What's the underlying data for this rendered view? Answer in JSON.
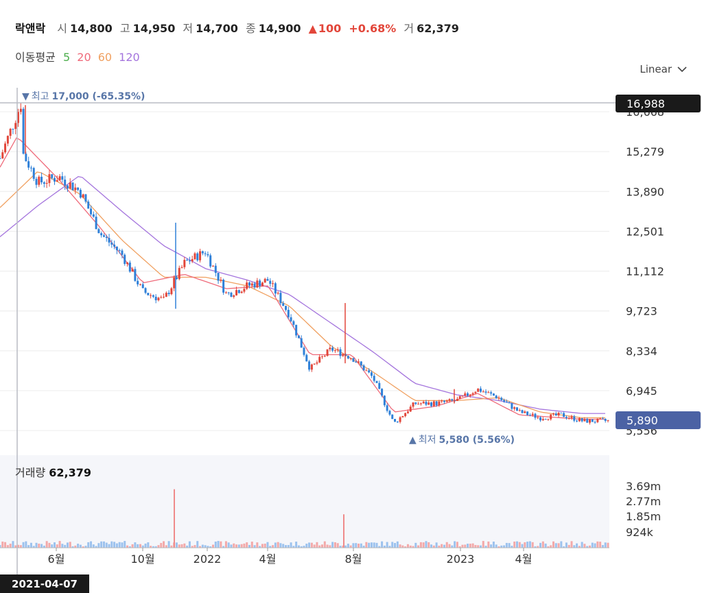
{
  "header": {
    "name": "락앤락",
    "open_label": "시",
    "open": "14,800",
    "high_label": "고",
    "high": "14,950",
    "low_label": "저",
    "low": "14,700",
    "close_label": "종",
    "close": "14,900",
    "change_arrow": "▲",
    "change": "100",
    "change_pct": "+0.68%",
    "volume_label": "거",
    "volume": "62,379"
  },
  "ma_legend": {
    "label": "이동평균",
    "periods": [
      {
        "value": "5",
        "color": "#4cae4c"
      },
      {
        "value": "20",
        "color": "#ef6a7a"
      },
      {
        "value": "60",
        "color": "#f0a060"
      },
      {
        "value": "120",
        "color": "#a474dd"
      }
    ]
  },
  "scale_selector": {
    "value": "Linear",
    "icon": "chevron-down-icon"
  },
  "crosshair": {
    "price_tag": "16,988",
    "date_tag": "2021-04-07"
  },
  "current_price_tag": "5,890",
  "annotations": {
    "high": {
      "arrow": "▼",
      "label": "최고",
      "value": "17,000 (-65.35%)"
    },
    "low": {
      "arrow": "▲",
      "label": "최저",
      "value": "5,580 (5.56%)"
    }
  },
  "volume_panel": {
    "label": "거래량",
    "value": "62,379"
  },
  "colors": {
    "up": "#e2463a",
    "down": "#2f80d8",
    "grid": "#ececec",
    "volume_bg": "#f5f6fa"
  },
  "chart_data": {
    "type": "candlestick",
    "price_axis": {
      "ticks": [
        "16,668",
        "15,279",
        "13,890",
        "12,501",
        "11,112",
        "9,723",
        "8,334",
        "6,945",
        "5,556"
      ],
      "range": [
        5556,
        16668
      ]
    },
    "volume_axis": {
      "ticks": [
        "3.69m",
        "2.77m",
        "1.85m",
        "924k"
      ]
    },
    "x_ticks": [
      "6월",
      "10월",
      "2022",
      "4월",
      "8월",
      "2023",
      "4월"
    ],
    "price_series": [
      {
        "x": "2021-03",
        "y": 14700
      },
      {
        "x": "2021-04-07",
        "y": 16988
      },
      {
        "x": "2021-04",
        "y": 15600
      },
      {
        "x": "2021-05",
        "y": 14200
      },
      {
        "x": "2021-06",
        "y": 14400
      },
      {
        "x": "2021-07",
        "y": 13900
      },
      {
        "x": "2021-08",
        "y": 12400
      },
      {
        "x": "2021-09",
        "y": 11700
      },
      {
        "x": "2021-10",
        "y": 10400
      },
      {
        "x": "2021-11",
        "y": 10100
      },
      {
        "x": "2021-12",
        "y": 11400
      },
      {
        "x": "2022-01",
        "y": 11800
      },
      {
        "x": "2022-02",
        "y": 10300
      },
      {
        "x": "2022-03",
        "y": 10600
      },
      {
        "x": "2022-04",
        "y": 10800
      },
      {
        "x": "2022-05",
        "y": 9600
      },
      {
        "x": "2022-06",
        "y": 7700
      },
      {
        "x": "2022-07",
        "y": 8400
      },
      {
        "x": "2022-08",
        "y": 8100
      },
      {
        "x": "2022-09",
        "y": 7400
      },
      {
        "x": "2022-10",
        "y": 5800
      },
      {
        "x": "2022-11",
        "y": 6500
      },
      {
        "x": "2022-12",
        "y": 6500
      },
      {
        "x": "2023-01",
        "y": 6600
      },
      {
        "x": "2023-02",
        "y": 7000
      },
      {
        "x": "2023-03",
        "y": 6700
      },
      {
        "x": "2023-04",
        "y": 6200
      },
      {
        "x": "2023-05",
        "y": 6000
      },
      {
        "x": "2023-06",
        "y": 6100
      },
      {
        "x": "2023-07",
        "y": 5890
      }
    ],
    "ma120": [
      {
        "x": "2021-03",
        "y": 12200
      },
      {
        "x": "2021-05",
        "y": 13400
      },
      {
        "x": "2021-07",
        "y": 14450
      },
      {
        "x": "2021-09",
        "y": 13200
      },
      {
        "x": "2021-11",
        "y": 12000
      },
      {
        "x": "2022-01",
        "y": 11200
      },
      {
        "x": "2022-03",
        "y": 10800
      },
      {
        "x": "2022-05",
        "y": 10300
      },
      {
        "x": "2022-07",
        "y": 9300
      },
      {
        "x": "2022-09",
        "y": 8300
      },
      {
        "x": "2022-11",
        "y": 7200
      },
      {
        "x": "2023-01",
        "y": 6800
      },
      {
        "x": "2023-03",
        "y": 6600
      },
      {
        "x": "2023-05",
        "y": 6300
      },
      {
        "x": "2023-07",
        "y": 6150
      }
    ],
    "ma60": [
      {
        "x": "2021-03",
        "y": 13200
      },
      {
        "x": "2021-05",
        "y": 14600
      },
      {
        "x": "2021-07",
        "y": 13800
      },
      {
        "x": "2021-09",
        "y": 12200
      },
      {
        "x": "2021-11",
        "y": 10900
      },
      {
        "x": "2022-01",
        "y": 10900
      },
      {
        "x": "2022-03",
        "y": 10600
      },
      {
        "x": "2022-05",
        "y": 9900
      },
      {
        "x": "2022-07",
        "y": 8500
      },
      {
        "x": "2022-09",
        "y": 7600
      },
      {
        "x": "2022-11",
        "y": 6600
      },
      {
        "x": "2023-01",
        "y": 6600
      },
      {
        "x": "2023-03",
        "y": 6700
      },
      {
        "x": "2023-05",
        "y": 6200
      },
      {
        "x": "2023-07",
        "y": 6000
      }
    ],
    "ma20": [
      {
        "x": "2021-03",
        "y": 14500
      },
      {
        "x": "2021-04",
        "y": 15800
      },
      {
        "x": "2021-06",
        "y": 14300
      },
      {
        "x": "2021-08",
        "y": 12600
      },
      {
        "x": "2021-10",
        "y": 10700
      },
      {
        "x": "2021-12",
        "y": 11000
      },
      {
        "x": "2022-02",
        "y": 10500
      },
      {
        "x": "2022-04",
        "y": 10600
      },
      {
        "x": "2022-06",
        "y": 8200
      },
      {
        "x": "2022-08",
        "y": 8200
      },
      {
        "x": "2022-10",
        "y": 6200
      },
      {
        "x": "2022-12",
        "y": 6400
      },
      {
        "x": "2023-02",
        "y": 6850
      },
      {
        "x": "2023-04",
        "y": 6100
      },
      {
        "x": "2023-07",
        "y": 5950
      }
    ],
    "volume_spikes": [
      {
        "x": "2021-11",
        "value": 3500000
      },
      {
        "x": "2022-07",
        "value": 2000000
      }
    ]
  }
}
